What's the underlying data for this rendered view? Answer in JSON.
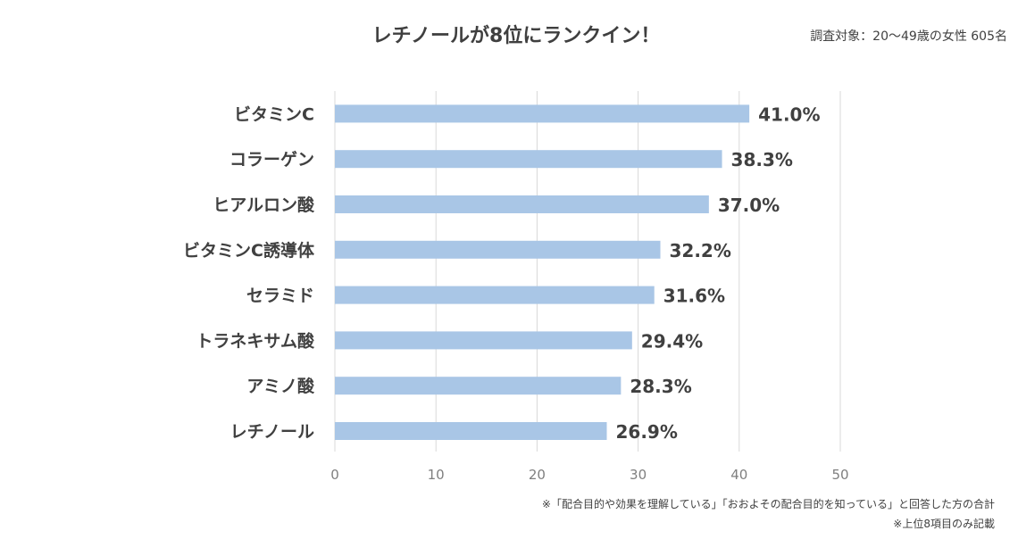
{
  "header": {
    "title": "レチノールが8位にランクイン！",
    "survey": "調査対象：20〜49歳の女性 605名"
  },
  "footnotes": {
    "note1": "※「配合目的や効果を理解している」「おおよその配合目的を知っている」と回答した方の合計",
    "note2": "※上位8項目のみ記載"
  },
  "colors": {
    "bar": "#a9c6e6",
    "grid": "#d9d9d9",
    "label": "#404040",
    "axis_tick": "#7f7f7f"
  },
  "chart_data": {
    "type": "bar",
    "orientation": "horizontal",
    "categories": [
      "ビタミンC",
      "コラーゲン",
      "ヒアルロン酸",
      "ビタミンC誘導体",
      "セラミド",
      "トラネキサム酸",
      "アミノ酸",
      "レチノール"
    ],
    "values": [
      41.0,
      38.3,
      37.0,
      32.2,
      31.6,
      29.4,
      28.3,
      26.9
    ],
    "value_labels": [
      "41.0%",
      "38.3%",
      "37.0%",
      "32.2%",
      "31.6%",
      "29.4%",
      "28.3%",
      "26.9%"
    ],
    "xlim": [
      0,
      50
    ],
    "xticks": [
      "0",
      "10",
      "20",
      "30",
      "40",
      "50"
    ],
    "grid": true
  }
}
